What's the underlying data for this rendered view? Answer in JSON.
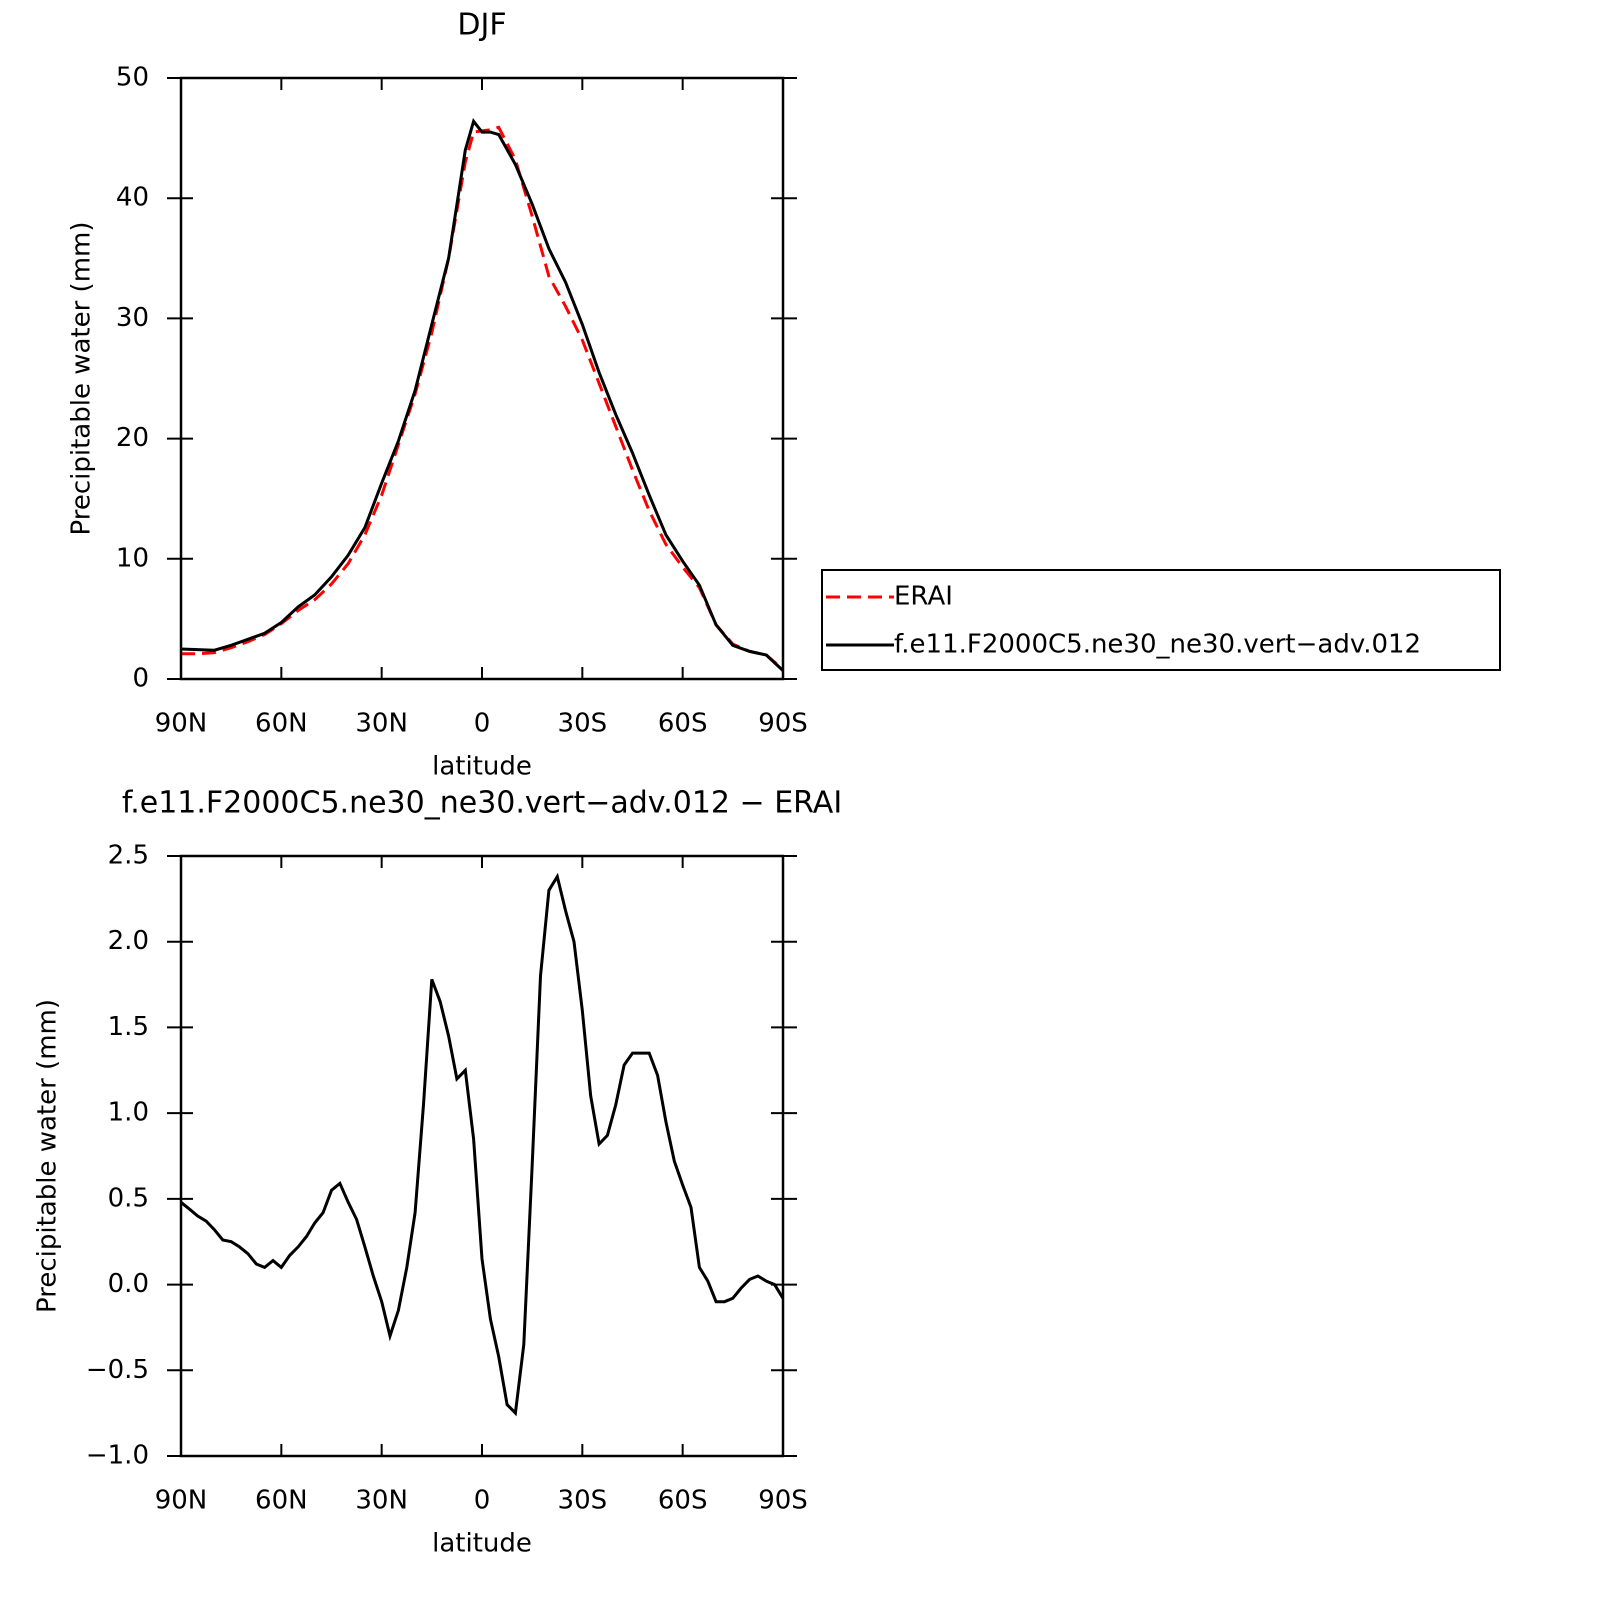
{
  "chart_data": [
    {
      "type": "line",
      "title": "DJF",
      "xlabel": "latitude",
      "ylabel": "Precipitable water (mm)",
      "x": [
        90,
        85,
        80,
        75,
        70,
        65,
        60,
        55,
        50,
        45,
        40,
        35,
        30,
        25,
        20,
        15,
        10,
        5,
        2.5,
        0,
        -2.5,
        -5,
        -10,
        -15,
        -20,
        -25,
        -30,
        -35,
        -40,
        -45,
        -50,
        -55,
        -60,
        -65,
        -70,
        -75,
        -80,
        -85,
        -90
      ],
      "xlim": [
        90,
        -90
      ],
      "xticks": [
        {
          "value": 90,
          "label": "90N"
        },
        {
          "value": 60,
          "label": "60N"
        },
        {
          "value": 30,
          "label": "30N"
        },
        0,
        {
          "value": -30,
          "label": "30S"
        },
        {
          "value": -60,
          "label": "60S"
        },
        {
          "value": -90,
          "label": "90S"
        }
      ],
      "ylim": [
        0,
        50
      ],
      "yticks": [
        0,
        10,
        20,
        30,
        40,
        50
      ],
      "legend": "right",
      "series": [
        {
          "name": "ERAI",
          "color": "#ff0000",
          "linestyle": "dashed",
          "values": [
            2.1,
            2.1,
            2.2,
            2.6,
            3.1,
            3.7,
            4.6,
            5.7,
            6.6,
            7.9,
            9.6,
            12.0,
            15.3,
            19.5,
            23.7,
            28.8,
            35,
            43,
            45.5,
            45.6,
            45.7,
            45.9,
            43.2,
            38.5,
            33.5,
            31,
            28.2,
            24.6,
            21,
            17.4,
            14,
            11.2,
            9.3,
            7.6,
            4.5,
            2.9,
            2.3,
            2.0,
            0.8
          ]
        },
        {
          "name": "f.e11.F2000C5.ne30_ne30.vert−adv.012",
          "color": "#000000",
          "linestyle": "solid",
          "values": [
            2.5,
            2.45,
            2.4,
            2.8,
            3.3,
            3.8,
            4.7,
            6.0,
            7.0,
            8.5,
            10.3,
            12.6,
            16.3,
            19.8,
            24,
            29.5,
            35,
            44,
            46.4,
            45.5,
            45.5,
            45.3,
            42.8,
            39.5,
            35.8,
            33,
            29.5,
            25.5,
            22,
            18.8,
            15.3,
            12,
            9.8,
            7.8,
            4.5,
            2.8,
            2.3,
            2.0,
            0.7
          ]
        }
      ]
    },
    {
      "type": "line",
      "title": "f.e11.F2000C5.ne30_ne30.vert−adv.012 − ERAI",
      "xlabel": "latitude",
      "ylabel": "Precipitable water (mm)",
      "x": [
        90,
        87.5,
        85,
        82.5,
        80,
        77.5,
        75,
        72.5,
        70,
        67.5,
        65,
        62.5,
        60,
        57.5,
        55,
        52.5,
        50,
        47.5,
        45,
        42.5,
        40,
        37.5,
        35,
        32.5,
        30,
        27.5,
        25,
        22.5,
        20,
        17.5,
        15,
        12.5,
        10,
        7.5,
        5,
        2.5,
        0,
        -2.5,
        -5,
        -7.5,
        -10,
        -12.5,
        -15,
        -17.5,
        -20,
        -22.5,
        -25,
        -27.5,
        -30,
        -32.5,
        -35,
        -37.5,
        -40,
        -42.5,
        -45,
        -47.5,
        -50,
        -52.5,
        -55,
        -57.5,
        -60,
        -62.5,
        -65,
        -67.5,
        -70,
        -72.5,
        -75,
        -77.5,
        -80,
        -82.5,
        -85,
        -87.5,
        -90
      ],
      "xlim": [
        90,
        -90
      ],
      "xticks": [
        {
          "value": 90,
          "label": "90N"
        },
        {
          "value": 60,
          "label": "60N"
        },
        {
          "value": 30,
          "label": "30N"
        },
        0,
        {
          "value": -30,
          "label": "30S"
        },
        {
          "value": -60,
          "label": "60S"
        },
        {
          "value": -90,
          "label": "90S"
        }
      ],
      "ylim": [
        -1,
        2.5
      ],
      "yticks": [
        {
          "value": -1,
          "label": "−1.0"
        },
        {
          "value": -0.5,
          "label": "−0.5"
        },
        {
          "value": 0,
          "label": "0.0"
        },
        0.5,
        {
          "value": 1,
          "label": "1.0"
        },
        1.5,
        {
          "value": 2,
          "label": "2.0"
        },
        2.5
      ],
      "series": [
        {
          "color": "#000000",
          "linestyle": "solid",
          "values": [
            0.48,
            0.44,
            0.4,
            0.37,
            0.32,
            0.26,
            0.25,
            0.22,
            0.18,
            0.12,
            0.1,
            0.14,
            0.1,
            0.17,
            0.22,
            0.28,
            0.36,
            0.42,
            0.55,
            0.59,
            0.48,
            0.38,
            0.22,
            0.05,
            -0.1,
            -0.3,
            -0.15,
            0.1,
            0.42,
            1.05,
            1.78,
            1.65,
            1.45,
            1.2,
            1.25,
            0.85,
            0.15,
            -0.2,
            -0.42,
            -0.7,
            -0.75,
            -0.35,
            0.7,
            1.8,
            2.3,
            2.38,
            2.18,
            2.0,
            1.6,
            1.1,
            0.82,
            0.87,
            1.05,
            1.28,
            1.35,
            1.35,
            1.35,
            1.22,
            0.95,
            0.72,
            0.58,
            0.45,
            0.1,
            0.02,
            -0.1,
            -0.1,
            -0.08,
            -0.02,
            0.03,
            0.05,
            0.02,
            0.0,
            -0.08
          ]
        }
      ]
    }
  ]
}
